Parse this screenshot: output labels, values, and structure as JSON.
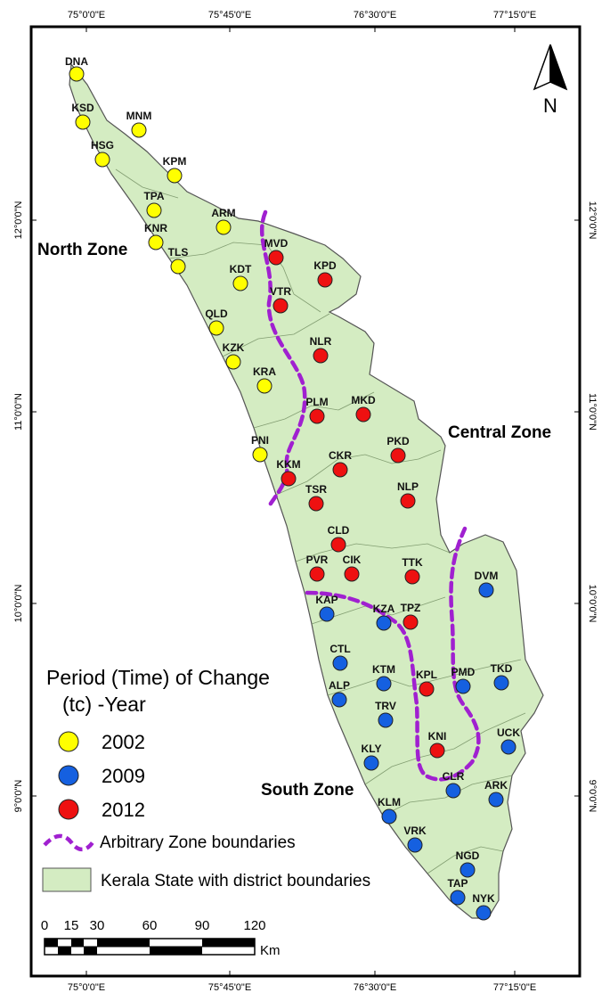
{
  "graticule": {
    "top": [
      "75°0'0\"E",
      "75°45'0\"E",
      "76°30'0\"E",
      "77°15'0\"E"
    ],
    "bottom": [
      "75°0'0\"E",
      "75°45'0\"E",
      "76°30'0\"E",
      "77°15'0\"E"
    ],
    "left": [
      "12°0'0\"N",
      "11°0'0\"N",
      "10°0'0\"N",
      "9°0'0\"N"
    ],
    "right": [
      "12°0'0\"N",
      "11°0'0\"N",
      "10°0'0\"N",
      "9°0'0\"N"
    ]
  },
  "zones": {
    "north": "North Zone",
    "central": "Central Zone",
    "south": "South Zone"
  },
  "north_arrow": "N",
  "legend": {
    "title_line1": "Period (Time) of Change",
    "title_line2": "(tc) -Year",
    "items": [
      {
        "label": "2002",
        "color": "#ffff00"
      },
      {
        "label": "2009",
        "color": "#1560e0"
      },
      {
        "label": "2012",
        "color": "#ee1111"
      }
    ],
    "boundary_label": "Arbitrary Zone boundaries",
    "boundary_color": "#a020d0",
    "state_label": "Kerala State with district boundaries",
    "state_color": "#d4ecc2"
  },
  "scale_bar": {
    "ticks": [
      "0",
      "15",
      "30",
      "60",
      "90",
      "120"
    ],
    "unit": "Km"
  },
  "stations": [
    {
      "code": "DNA",
      "year": "2002"
    },
    {
      "code": "KSD",
      "year": "2002"
    },
    {
      "code": "MNM",
      "year": "2002"
    },
    {
      "code": "HSG",
      "year": "2002"
    },
    {
      "code": "KPM",
      "year": "2002"
    },
    {
      "code": "TPA",
      "year": "2002"
    },
    {
      "code": "KNR",
      "year": "2002"
    },
    {
      "code": "ARM",
      "year": "2002"
    },
    {
      "code": "TLS",
      "year": "2002"
    },
    {
      "code": "KDT",
      "year": "2002"
    },
    {
      "code": "QLD",
      "year": "2002"
    },
    {
      "code": "KZK",
      "year": "2002"
    },
    {
      "code": "KRA",
      "year": "2002"
    },
    {
      "code": "PNI",
      "year": "2002"
    },
    {
      "code": "MVD",
      "year": "2012"
    },
    {
      "code": "KPD",
      "year": "2012"
    },
    {
      "code": "VTR",
      "year": "2012"
    },
    {
      "code": "NLR",
      "year": "2012"
    },
    {
      "code": "MKD",
      "year": "2012"
    },
    {
      "code": "PLM",
      "year": "2012"
    },
    {
      "code": "PKD",
      "year": "2012"
    },
    {
      "code": "CKR",
      "year": "2012"
    },
    {
      "code": "KKM",
      "year": "2012"
    },
    {
      "code": "NLP",
      "year": "2012"
    },
    {
      "code": "TSR",
      "year": "2012"
    },
    {
      "code": "CLD",
      "year": "2012"
    },
    {
      "code": "PVR",
      "year": "2012"
    },
    {
      "code": "CIK",
      "year": "2012"
    },
    {
      "code": "TTK",
      "year": "2012"
    },
    {
      "code": "TPZ",
      "year": "2012"
    },
    {
      "code": "KPL",
      "year": "2012"
    },
    {
      "code": "KNI",
      "year": "2012"
    },
    {
      "code": "DVM",
      "year": "2009"
    },
    {
      "code": "KAP",
      "year": "2009"
    },
    {
      "code": "KZA",
      "year": "2009"
    },
    {
      "code": "CTL",
      "year": "2009"
    },
    {
      "code": "KTM",
      "year": "2009"
    },
    {
      "code": "PMD",
      "year": "2009"
    },
    {
      "code": "TKD",
      "year": "2009"
    },
    {
      "code": "ALP",
      "year": "2009"
    },
    {
      "code": "TRV",
      "year": "2009"
    },
    {
      "code": "UCK",
      "year": "2009"
    },
    {
      "code": "KLY",
      "year": "2009"
    },
    {
      "code": "CLR",
      "year": "2009"
    },
    {
      "code": "ARK",
      "year": "2009"
    },
    {
      "code": "KLM",
      "year": "2009"
    },
    {
      "code": "VRK",
      "year": "2009"
    },
    {
      "code": "NGD",
      "year": "2009"
    },
    {
      "code": "TAP",
      "year": "2009"
    },
    {
      "code": "NYK",
      "year": "2009"
    }
  ]
}
